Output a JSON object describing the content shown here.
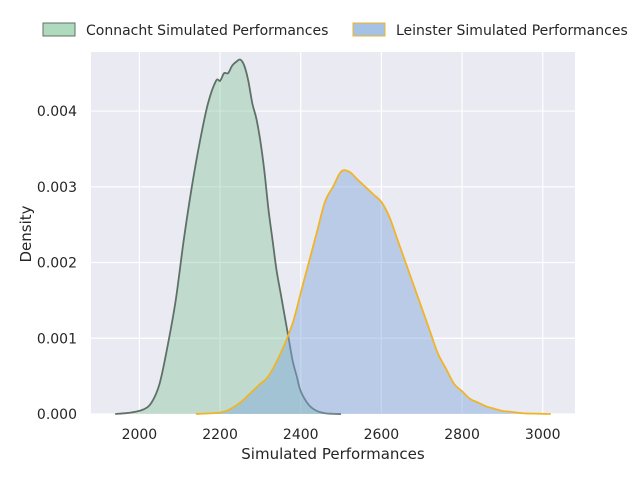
{
  "chart_data": {
    "type": "area",
    "title": "",
    "xlabel": "Simulated Performances",
    "ylabel": "Density",
    "xlim": [
      1880,
      3080
    ],
    "ylim": [
      0,
      0.00478
    ],
    "x_ticks": [
      2000,
      2200,
      2400,
      2600,
      2800,
      3000
    ],
    "x_tick_labels": [
      "2000",
      "2200",
      "2400",
      "2600",
      "2800",
      "3000"
    ],
    "y_ticks": [
      0,
      0.001,
      0.002,
      0.003,
      0.004
    ],
    "y_tick_labels": [
      "0.000",
      "0.001",
      "0.002",
      "0.003",
      "0.004"
    ],
    "grid": true,
    "legend_placement": "top (above plot)",
    "series": [
      {
        "name": "Connacht Simulated Performances",
        "fill_color": "#8ecaa2",
        "line_color": "#5f7066",
        "x": [
          1940,
          1980,
          2010,
          2030,
          2050,
          2070,
          2090,
          2110,
          2130,
          2150,
          2170,
          2190,
          2200,
          2210,
          2220,
          2230,
          2240,
          2250,
          2260,
          2270,
          2280,
          2290,
          2300,
          2310,
          2320,
          2330,
          2340,
          2350,
          2360,
          2370,
          2380,
          2390,
          2400,
          2420,
          2440,
          2460,
          2480,
          2500
        ],
        "y": [
          0,
          2e-05,
          6e-05,
          0.00015,
          0.0004,
          0.0009,
          0.0015,
          0.0023,
          0.003,
          0.0036,
          0.0041,
          0.0044,
          0.0044,
          0.0045,
          0.0045,
          0.0046,
          0.00465,
          0.00468,
          0.0046,
          0.0044,
          0.0041,
          0.0039,
          0.0036,
          0.0032,
          0.0027,
          0.0023,
          0.0019,
          0.0016,
          0.0013,
          0.001,
          0.0007,
          0.0005,
          0.0003,
          0.00012,
          4e-05,
          1e-05,
          3e-06,
          0
        ]
      },
      {
        "name": "Leinster Simulated Performances",
        "fill_color": "#7fa7d9",
        "line_color": "#f0b428",
        "x": [
          2140,
          2180,
          2200,
          2220,
          2250,
          2280,
          2300,
          2320,
          2350,
          2380,
          2400,
          2420,
          2440,
          2460,
          2480,
          2500,
          2520,
          2540,
          2560,
          2580,
          2600,
          2620,
          2640,
          2660,
          2680,
          2700,
          2720,
          2740,
          2760,
          2780,
          2800,
          2820,
          2840,
          2860,
          2880,
          2900,
          2920,
          2950,
          2980,
          3020
        ],
        "y": [
          0,
          1e-05,
          2e-05,
          5e-05,
          0.00015,
          0.0003,
          0.0004,
          0.0005,
          0.0008,
          0.0012,
          0.0016,
          0.002,
          0.0024,
          0.0028,
          0.003,
          0.0032,
          0.0032,
          0.0031,
          0.003,
          0.0029,
          0.0028,
          0.0026,
          0.0023,
          0.002,
          0.0017,
          0.0014,
          0.0011,
          0.0008,
          0.0006,
          0.0004,
          0.0003,
          0.0002,
          0.00015,
          0.0001,
          7e-05,
          4e-05,
          3e-05,
          1e-05,
          5e-06,
          0
        ]
      }
    ]
  }
}
